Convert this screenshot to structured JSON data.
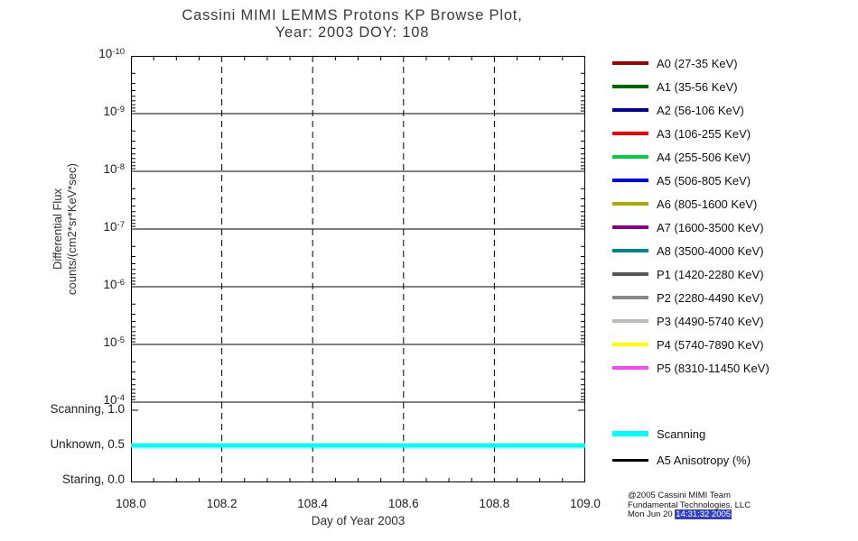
{
  "title": {
    "line1": "Cassini MIMI LEMMS Protons KP Browse Plot,",
    "line2": "Year: 2003 DOY: 108"
  },
  "yaxis": {
    "label_line1": "Differential Flux",
    "label_line2": "counts/(cm2*sr*KeV*sec)",
    "ticks": [
      {
        "base": "10",
        "exp": "-10"
      },
      {
        "base": "10",
        "exp": "-9"
      },
      {
        "base": "10",
        "exp": "-8"
      },
      {
        "base": "10",
        "exp": "-7"
      },
      {
        "base": "10",
        "exp": "-6"
      },
      {
        "base": "10",
        "exp": "-5"
      },
      {
        "base": "10",
        "exp": "-4"
      }
    ]
  },
  "status_axis": {
    "labels": [
      "Scanning, 1.0",
      "Unknown, 0.5",
      "Staring, 0.0"
    ]
  },
  "xaxis": {
    "label": "Day of Year 2003",
    "ticks": [
      "108.0",
      "108.2",
      "108.4",
      "108.6",
      "108.8",
      "109.0"
    ]
  },
  "legend": {
    "items": [
      {
        "label": "A0 (27-35 KeV)",
        "color": "#990000"
      },
      {
        "label": "A1 (35-56 KeV)",
        "color": "#006600"
      },
      {
        "label": "A2 (56-106 KeV)",
        "color": "#000099"
      },
      {
        "label": "A3 (106-255 KeV)",
        "color": "#EE0000"
      },
      {
        "label": "A4 (255-506 KeV)",
        "color": "#00CC44"
      },
      {
        "label": "A5 (506-805 KeV)",
        "color": "#0000EE"
      },
      {
        "label": "A6 (805-1600 KeV)",
        "color": "#AAAA00"
      },
      {
        "label": "A7 (1600-3500 KeV)",
        "color": "#880088"
      },
      {
        "label": "A8 (3500-4000 KeV)",
        "color": "#008888"
      },
      {
        "label": "P1 (1420-2280 KeV)",
        "color": "#555555"
      },
      {
        "label": "P2 (2280-4490 KeV)",
        "color": "#888888"
      },
      {
        "label": "P3 (4490-5740 KeV)",
        "color": "#BBBBBB"
      },
      {
        "label": "P4 (5740-7890 KeV)",
        "color": "#FFFF00"
      },
      {
        "label": "P5 (8310-11450 KeV)",
        "color": "#FF44FF"
      }
    ]
  },
  "legend2": {
    "items": [
      {
        "label": "Scanning",
        "color": "#00FFFF"
      },
      {
        "label": "A5 Anisotropy (%)",
        "color": "#000000"
      }
    ]
  },
  "credit": {
    "line1": "@2005 Cassini MIMI Team",
    "line2": "Fundamental Technologies, LLC",
    "line3_prefix": "Mon Jun 20 ",
    "line3_highlight": "14:31:32 2005"
  },
  "chart_data": {
    "type": "line",
    "title": "Cassini MIMI LEMMS Protons KP Browse Plot, Year: 2003 DOY: 108",
    "xlabel": "Day of Year 2003",
    "ylabel": "Differential Flux counts/(cm2*sr*KeV*sec)",
    "xlim": [
      108.0,
      109.0
    ],
    "x_ticks": [
      108.0,
      108.2,
      108.4,
      108.6,
      108.8,
      109.0
    ],
    "y_scale": "log, inverted (1e-10 at top to 1e-4 at bottom)",
    "y_ticks": [
      1e-10,
      1e-09,
      1e-08,
      1e-07,
      1e-06,
      1e-05,
      0.0001
    ],
    "flux_series": "no flux data traces visible in plot area",
    "status_strip": {
      "levels": {
        "Scanning": 1.0,
        "Unknown": 0.5,
        "Staring": 0.0
      },
      "series": {
        "name": "Scanning",
        "color": "#00FFFF",
        "x": [
          108.0,
          109.0
        ],
        "y": [
          0.5,
          0.5
        ]
      }
    },
    "grid": "dashed vertical gridlines at each x tick; solid horizontal lines at each decade",
    "legend_position": "right"
  }
}
